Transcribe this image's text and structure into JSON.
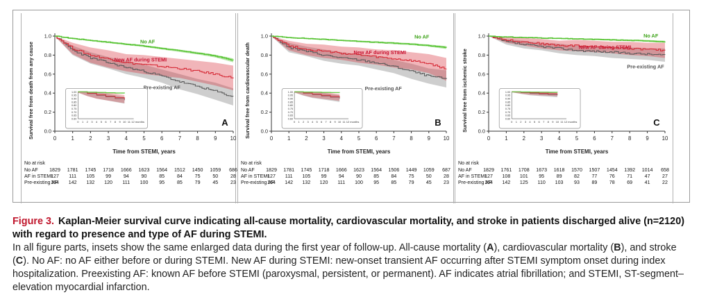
{
  "figure": {
    "caption_label": "Figure 3.",
    "caption_title": "Kaplan-Meier survival curve indicating all-cause mortality, cardiovascular mortality, and stroke in patients discharged alive (n=2120) with regard to presence and type of AF during STEMI.",
    "caption_body": [
      {
        "text": "In all figure parts, insets show the same enlarged data during the first year of follow-up. All-cause mortality (",
        "bold": false
      },
      {
        "text": "A",
        "bold": true
      },
      {
        "text": "), cardiovascular mortality (",
        "bold": false
      },
      {
        "text": "B",
        "bold": true
      },
      {
        "text": "), and stroke (",
        "bold": false
      },
      {
        "text": "C",
        "bold": true
      },
      {
        "text": "). No AF: no AF either before or during STEMI. New AF during STEMI: new-onset transient AF occurring after STEMI symptom onset during index hospitalization. Preexisting AF: known AF before STEMI (paroxysmal, persistent, or permanent). AF indicates atrial fibrillation; and STEMI, ST-segment–elevation myocardial infarction.",
        "bold": false
      }
    ]
  },
  "colors": {
    "no_af": "#58c434",
    "new_af": "#d62a36",
    "pre_af": "#5c5c5c",
    "no_af_label": "#3da318",
    "new_af_label": "#c8102e",
    "pre_af_label": "#555555"
  },
  "chart_data": [
    {
      "type": "line",
      "panel": "A",
      "ylabel": "Survival free from death from any cause",
      "xlabel": "Time from STEMI, years",
      "xlim": [
        0,
        10
      ],
      "ylim": [
        0,
        1
      ],
      "x_ticks": [
        "0",
        "1",
        "2",
        "3",
        "4",
        "5",
        "6",
        "7",
        "8",
        "9",
        "10"
      ],
      "y_ticks": [
        "0.0",
        "0.2",
        "0.4",
        "0.6",
        "0.8",
        "1.0"
      ],
      "x": [
        0,
        1,
        2,
        3,
        4,
        5,
        6,
        7,
        8,
        9,
        10
      ],
      "series": [
        {
          "name": "No AF",
          "label_text": "No AF",
          "color": "#58c434",
          "values": [
            1.0,
            0.975,
            0.955,
            0.935,
            0.915,
            0.895,
            0.87,
            0.845,
            0.82,
            0.79,
            0.745
          ],
          "ci_half": [
            0,
            0.006,
            0.007,
            0.008,
            0.009,
            0.01,
            0.011,
            0.012,
            0.013,
            0.015,
            0.02
          ]
        },
        {
          "name": "New AF during STEMI",
          "label_text": "New AF during STEMI",
          "color": "#d62a36",
          "values": [
            1.0,
            0.87,
            0.8,
            0.76,
            0.72,
            0.7,
            0.68,
            0.66,
            0.63,
            0.6,
            0.56
          ],
          "ci_half": [
            0,
            0.06,
            0.08,
            0.09,
            0.09,
            0.1,
            0.1,
            0.1,
            0.11,
            0.12,
            0.13
          ]
        },
        {
          "name": "Pre-existing AF",
          "label_text": "Pre-existing AF",
          "color": "#5c5c5c",
          "values": [
            1.0,
            0.85,
            0.77,
            0.72,
            0.67,
            0.63,
            0.58,
            0.52,
            0.47,
            0.42,
            0.36
          ],
          "ci_half": [
            0,
            0.05,
            0.06,
            0.06,
            0.07,
            0.07,
            0.07,
            0.08,
            0.08,
            0.09,
            0.09
          ]
        }
      ],
      "inset": {
        "y_ticks": [
          "1.00",
          "0.95",
          "0.90",
          "0.85",
          "0.80",
          "0.75",
          "0.70",
          "0.65",
          "0.60"
        ],
        "x_ticks": [
          "0",
          "1",
          "2",
          "3",
          "4",
          "5",
          "6",
          "7",
          "8",
          "9",
          "10",
          "11",
          "12 months"
        ],
        "ylim": [
          0.6,
          1.0
        ]
      },
      "panel_label": "A",
      "risk_table": {
        "header": "No at risk",
        "rows": [
          {
            "label": "No AF",
            "values": [
              "1829",
              "1781",
              "1745",
              "1718",
              "1666",
              "1623",
              "1564",
              "1512",
              "1450",
              "1059",
              "686"
            ]
          },
          {
            "label": "AF in STEMI",
            "values": [
              "127",
              "111",
              "105",
              "99",
              "94",
              "90",
              "85",
              "84",
              "75",
              "50",
              "28"
            ]
          },
          {
            "label": "Pre-existing AF",
            "values": [
              "164",
              "142",
              "132",
              "120",
              "111",
              "100",
              "95",
              "85",
              "79",
              "45",
              "23"
            ]
          }
        ]
      }
    },
    {
      "type": "line",
      "panel": "B",
      "ylabel": "Survival free from cardiovascular death",
      "xlabel": "Time from STEMI, years",
      "xlim": [
        0,
        10
      ],
      "ylim": [
        0,
        1
      ],
      "x_ticks": [
        "0",
        "1",
        "2",
        "3",
        "4",
        "5",
        "6",
        "7",
        "8",
        "9",
        "10"
      ],
      "y_ticks": [
        "0.0",
        "0.2",
        "0.4",
        "0.6",
        "0.8",
        "1.0"
      ],
      "x": [
        0,
        1,
        2,
        3,
        4,
        5,
        6,
        7,
        8,
        9,
        10
      ],
      "series": [
        {
          "name": "No AF",
          "label_text": "No AF",
          "color": "#58c434",
          "values": [
            1.0,
            0.985,
            0.975,
            0.965,
            0.955,
            0.945,
            0.935,
            0.925,
            0.915,
            0.9,
            0.88
          ],
          "ci_half": [
            0,
            0.005,
            0.006,
            0.006,
            0.007,
            0.008,
            0.009,
            0.01,
            0.01,
            0.012,
            0.015
          ]
        },
        {
          "name": "New AF during STEMI",
          "label_text": "New AF during STEMI",
          "color": "#d62a36",
          "values": [
            1.0,
            0.9,
            0.86,
            0.84,
            0.82,
            0.8,
            0.78,
            0.76,
            0.74,
            0.71,
            0.65
          ],
          "ci_half": [
            0,
            0.05,
            0.06,
            0.07,
            0.07,
            0.08,
            0.08,
            0.09,
            0.09,
            0.1,
            0.12
          ]
        },
        {
          "name": "Pre-existing AF",
          "label_text": "Pre-existing AF",
          "color": "#5c5c5c",
          "values": [
            1.0,
            0.88,
            0.84,
            0.8,
            0.77,
            0.75,
            0.72,
            0.68,
            0.63,
            0.58,
            0.55
          ],
          "ci_half": [
            0,
            0.05,
            0.05,
            0.06,
            0.06,
            0.06,
            0.07,
            0.07,
            0.08,
            0.08,
            0.09
          ]
        }
      ],
      "inset": {
        "y_ticks": [
          "1.00",
          "0.95",
          "0.90",
          "0.85",
          "0.80",
          "0.75",
          "0.70",
          "0.65",
          "0.60"
        ],
        "x_ticks": [
          "0",
          "1",
          "2",
          "3",
          "4",
          "5",
          "6",
          "7",
          "8",
          "9",
          "10",
          "11",
          "12 months"
        ],
        "ylim": [
          0.6,
          1.0
        ]
      },
      "panel_label": "B",
      "risk_table": {
        "header": "No at risk",
        "rows": [
          {
            "label": "No AF",
            "values": [
              "1829",
              "1781",
              "1745",
              "1718",
              "1666",
              "1623",
              "1564",
              "1506",
              "1449",
              "1059",
              "687"
            ]
          },
          {
            "label": "AF in STEMI",
            "values": [
              "127",
              "111",
              "105",
              "99",
              "94",
              "90",
              "85",
              "84",
              "75",
              "50",
              "28"
            ]
          },
          {
            "label": "Pre-existing AF",
            "values": [
              "164",
              "142",
              "132",
              "120",
              "111",
              "100",
              "95",
              "85",
              "79",
              "45",
              "23"
            ]
          }
        ]
      }
    },
    {
      "type": "line",
      "panel": "C",
      "ylabel": "Survival free from ischemic stroke",
      "xlabel": "Time from STEMI, years",
      "xlim": [
        0,
        10
      ],
      "ylim": [
        0,
        1
      ],
      "x_ticks": [
        "0",
        "1",
        "2",
        "3",
        "4",
        "5",
        "6",
        "7",
        "8",
        "9",
        "10"
      ],
      "y_ticks": [
        "0.0",
        "0.2",
        "0.4",
        "0.6",
        "0.8",
        "1.0"
      ],
      "x": [
        0,
        1,
        2,
        3,
        4,
        5,
        6,
        7,
        8,
        9,
        10
      ],
      "series": [
        {
          "name": "No AF",
          "label_text": "No AF",
          "color": "#58c434",
          "values": [
            1.0,
            0.99,
            0.985,
            0.98,
            0.975,
            0.97,
            0.965,
            0.96,
            0.955,
            0.95,
            0.94
          ],
          "ci_half": [
            0,
            0.004,
            0.005,
            0.005,
            0.006,
            0.006,
            0.007,
            0.008,
            0.008,
            0.009,
            0.01
          ]
        },
        {
          "name": "New AF during STEMI",
          "label_text": "New AF during STEMI",
          "color": "#d62a36",
          "values": [
            1.0,
            0.96,
            0.94,
            0.92,
            0.9,
            0.9,
            0.89,
            0.88,
            0.87,
            0.86,
            0.85
          ],
          "ci_half": [
            0,
            0.03,
            0.04,
            0.05,
            0.05,
            0.06,
            0.06,
            0.06,
            0.07,
            0.07,
            0.08
          ]
        },
        {
          "name": "Pre-existing AF",
          "label_text": "Pre-existing AF",
          "color": "#5c5c5c",
          "values": [
            1.0,
            0.94,
            0.91,
            0.89,
            0.87,
            0.85,
            0.84,
            0.83,
            0.82,
            0.81,
            0.8
          ],
          "ci_half": [
            0,
            0.03,
            0.04,
            0.04,
            0.05,
            0.05,
            0.05,
            0.06,
            0.06,
            0.06,
            0.07
          ]
        }
      ],
      "inset": {
        "y_ticks": [
          "1.00",
          "0.95",
          "0.90",
          "0.85",
          "0.80",
          "0.75",
          "0.70",
          "0.65",
          "0.60"
        ],
        "x_ticks": [
          "0",
          "1",
          "2",
          "3",
          "4",
          "5",
          "6",
          "7",
          "8",
          "9",
          "10",
          "11",
          "12 months"
        ],
        "ylim": [
          0.6,
          1.0
        ]
      },
      "panel_label": "C",
      "risk_table": {
        "header": "No at risk",
        "rows": [
          {
            "label": "No AF",
            "values": [
              "1829",
              "1761",
              "1708",
              "1673",
              "1618",
              "1570",
              "1507",
              "1454",
              "1392",
              "1014",
              "658"
            ]
          },
          {
            "label": "AF in STEMI",
            "values": [
              "127",
              "108",
              "101",
              "95",
              "89",
              "82",
              "77",
              "76",
              "71",
              "47",
              "27"
            ]
          },
          {
            "label": "Pre-existing AF",
            "values": [
              "164",
              "142",
              "125",
              "110",
              "103",
              "93",
              "89",
              "78",
              "69",
              "41",
              "22"
            ]
          }
        ]
      }
    }
  ]
}
